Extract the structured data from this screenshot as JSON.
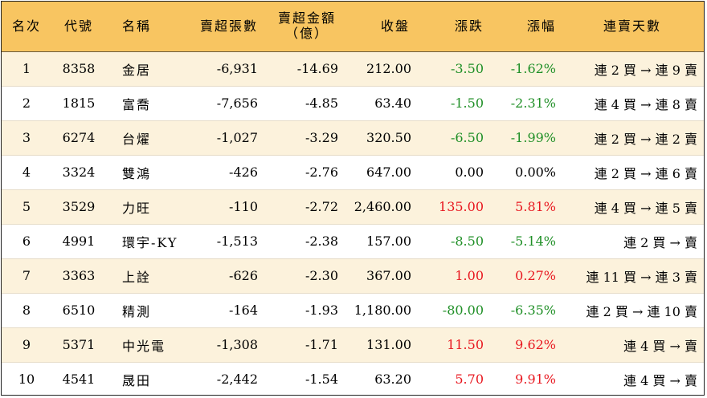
{
  "header": {
    "rank": "名次",
    "code": "代號",
    "name": "名稱",
    "sell_lots": "賣超張數",
    "sell_amount_line1": "賣超金額",
    "sell_amount_line2": "（億）",
    "close": "收盤",
    "change": "漲跌",
    "change_pct": "漲幅",
    "streak": "連賣天數"
  },
  "colors": {
    "header_bg": "#f8c561",
    "row_odd_bg": "#fcf2dc",
    "up": "#e8171f",
    "down": "#1f8f26"
  },
  "rows": [
    {
      "rank": "1",
      "code": "8358",
      "name": "金居",
      "sell_lots": "-6,931",
      "sell_amount": "-14.69",
      "close": "212.00",
      "change": "-3.50",
      "change_pct": "-1.62%",
      "trend": "down",
      "streak": "連 2 買 → 連 9 賣"
    },
    {
      "rank": "2",
      "code": "1815",
      "name": "富喬",
      "sell_lots": "-7,656",
      "sell_amount": "-4.85",
      "close": "63.40",
      "change": "-1.50",
      "change_pct": "-2.31%",
      "trend": "down",
      "streak": "連 4 買 → 連 8 賣"
    },
    {
      "rank": "3",
      "code": "6274",
      "name": "台燿",
      "sell_lots": "-1,027",
      "sell_amount": "-3.29",
      "close": "320.50",
      "change": "-6.50",
      "change_pct": "-1.99%",
      "trend": "down",
      "streak": "連 2 買 → 連 2 賣"
    },
    {
      "rank": "4",
      "code": "3324",
      "name": "雙鴻",
      "sell_lots": "-426",
      "sell_amount": "-2.76",
      "close": "647.00",
      "change": "0.00",
      "change_pct": "0.00%",
      "trend": "flat",
      "streak": "連 2 買 → 連 6 賣"
    },
    {
      "rank": "5",
      "code": "3529",
      "name": "力旺",
      "sell_lots": "-110",
      "sell_amount": "-2.72",
      "close": "2,460.00",
      "change": "135.00",
      "change_pct": "5.81%",
      "trend": "up",
      "streak": "連 4 買 → 連 5 賣"
    },
    {
      "rank": "6",
      "code": "4991",
      "name": "環宇-KY",
      "sell_lots": "-1,513",
      "sell_amount": "-2.38",
      "close": "157.00",
      "change": "-8.50",
      "change_pct": "-5.14%",
      "trend": "down",
      "streak": "連 2 買 → 賣"
    },
    {
      "rank": "7",
      "code": "3363",
      "name": "上詮",
      "sell_lots": "-626",
      "sell_amount": "-2.30",
      "close": "367.00",
      "change": "1.00",
      "change_pct": "0.27%",
      "trend": "up",
      "streak": "連 11 買 → 連 3 賣"
    },
    {
      "rank": "8",
      "code": "6510",
      "name": "精測",
      "sell_lots": "-164",
      "sell_amount": "-1.93",
      "close": "1,180.00",
      "change": "-80.00",
      "change_pct": "-6.35%",
      "trend": "down",
      "streak": "連 2 買 → 連 10 賣"
    },
    {
      "rank": "9",
      "code": "5371",
      "name": "中光電",
      "sell_lots": "-1,308",
      "sell_amount": "-1.71",
      "close": "131.00",
      "change": "11.50",
      "change_pct": "9.62%",
      "trend": "up",
      "streak": "連 4 買 → 賣"
    },
    {
      "rank": "10",
      "code": "4541",
      "name": "晟田",
      "sell_lots": "-2,442",
      "sell_amount": "-1.54",
      "close": "63.20",
      "change": "5.70",
      "change_pct": "9.91%",
      "trend": "up",
      "streak": "連 4 買 → 賣"
    }
  ]
}
